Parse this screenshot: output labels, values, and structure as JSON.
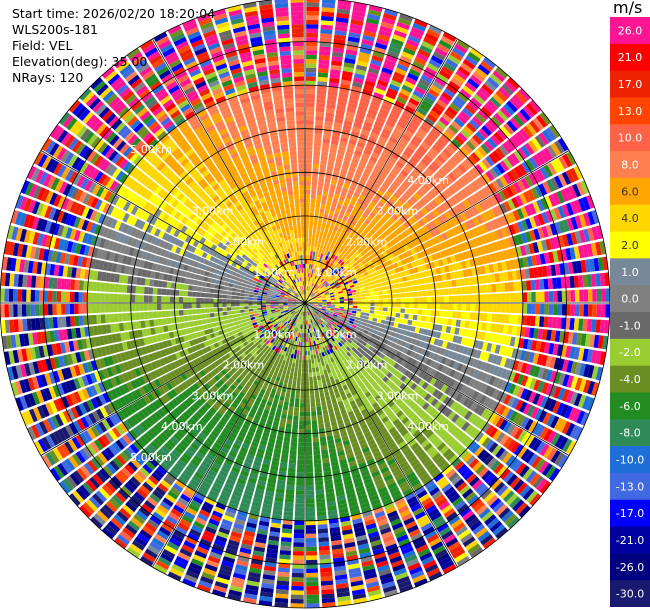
{
  "info": {
    "start_time": "Start time: 2026/02/20 18:20:04",
    "station": "WLS200s-181",
    "field": "Field: VEL",
    "elevation": "Elevation(deg): 35.00",
    "nrays": "NRays: 120"
  },
  "chart_data": {
    "type": "ppi",
    "title": "Start time: 2026/02/20 18:20:04",
    "field": "VEL",
    "units": "m/s",
    "elevation_deg": 35.0,
    "n_rays": 120,
    "max_range_km": 7.0,
    "range_rings_km": [
      1,
      2,
      3,
      4,
      5,
      6,
      7
    ],
    "azimuth_lines_deg": [
      0,
      30,
      60,
      90,
      120,
      150,
      180,
      210,
      240,
      270,
      300,
      330
    ],
    "ring_labels": [
      {
        "text": "5.00km",
        "range_km": 5.0,
        "azimuth_deg": 315
      },
      {
        "text": "4.00km",
        "range_km": 4.0,
        "azimuth_deg": 45
      },
      {
        "text": "4.00km",
        "range_km": 4.0,
        "azimuth_deg": 225
      },
      {
        "text": "4.00km",
        "range_km": 4.0,
        "azimuth_deg": 135
      },
      {
        "text": "3.00km",
        "range_km": 3.0,
        "azimuth_deg": 315
      },
      {
        "text": "3.00km",
        "range_km": 3.0,
        "azimuth_deg": 45
      },
      {
        "text": "3.00km",
        "range_km": 3.0,
        "azimuth_deg": 225
      },
      {
        "text": "3.00km",
        "range_km": 3.0,
        "azimuth_deg": 135
      },
      {
        "text": "2.00km",
        "range_km": 2.0,
        "azimuth_deg": 315
      },
      {
        "text": "2.00km",
        "range_km": 2.0,
        "azimuth_deg": 45
      },
      {
        "text": "2.00km",
        "range_km": 2.0,
        "azimuth_deg": 225
      },
      {
        "text": "2.00km",
        "range_km": 2.0,
        "azimuth_deg": 135
      },
      {
        "text": "1.00km",
        "range_km": 1.0,
        "azimuth_deg": 315
      },
      {
        "text": "1.00km",
        "range_km": 1.0,
        "azimuth_deg": 45
      },
      {
        "text": "1.00km",
        "range_km": 1.0,
        "azimuth_deg": 225
      },
      {
        "text": "1.00km",
        "range_km": 1.0,
        "azimuth_deg": 135
      },
      {
        "text": "5.00km",
        "range_km": 5.0,
        "azimuth_deg": 225
      }
    ],
    "colorbar": {
      "label": "m/s",
      "bins": [
        {
          "label": "26.0",
          "color": "#ff1493"
        },
        {
          "label": "21.0",
          "color": "#ff0000"
        },
        {
          "label": "17.0",
          "color": "#ee2200"
        },
        {
          "label": "13.0",
          "color": "#ff4500"
        },
        {
          "label": "10.0",
          "color": "#ff6347"
        },
        {
          "label": "8.0",
          "color": "#ff7f50"
        },
        {
          "label": "6.0",
          "color": "#ffa500"
        },
        {
          "label": "4.0",
          "color": "#ffd700"
        },
        {
          "label": "2.0",
          "color": "#ffff00"
        },
        {
          "label": "1.0",
          "color": "#778899"
        },
        {
          "label": "0.0",
          "color": "#808080"
        },
        {
          "label": "-1.0",
          "color": "#696969"
        },
        {
          "label": "-2.0",
          "color": "#9acd32"
        },
        {
          "label": "-4.0",
          "color": "#6b8e23"
        },
        {
          "label": "-6.0",
          "color": "#228b22"
        },
        {
          "label": "-8.0",
          "color": "#2e8b57"
        },
        {
          "label": "-10.0",
          "color": "#1e6fd8"
        },
        {
          "label": "-13.0",
          "color": "#4169e1"
        },
        {
          "label": "-17.0",
          "color": "#0000ff"
        },
        {
          "label": "-21.0",
          "color": "#0000a0"
        },
        {
          "label": "-26.0",
          "color": "#000080"
        },
        {
          "label": "-30.0",
          "color": "#191970"
        }
      ]
    },
    "velocity_pattern": {
      "note": "approximate field: positive (toward yellow/orange) to the north, negative (green/blue) to the south-west; noisy/aliased beyond ~5 km and within ~1 km",
      "wind_speed_ms": 5.0,
      "wind_from_azimuth_deg": 200
    }
  }
}
